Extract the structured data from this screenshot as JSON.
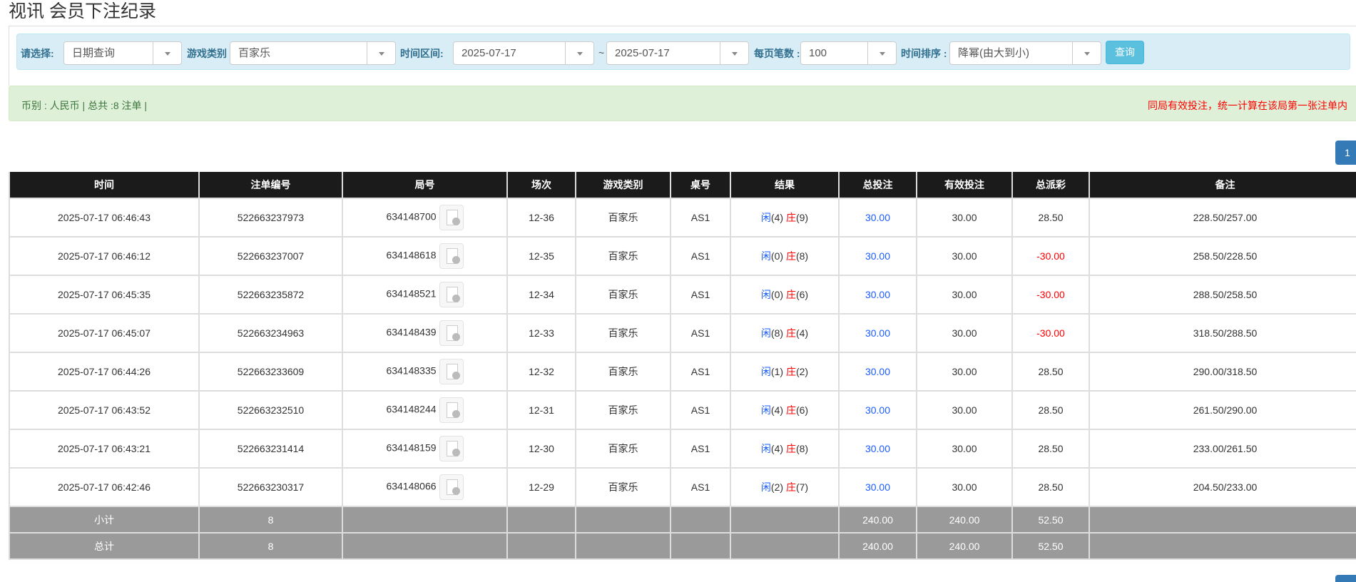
{
  "title": "视讯 会员下注纪录",
  "filters": {
    "select_label": "请选择:",
    "select_value": "日期查询",
    "game_label": "游戏类别",
    "game_value": "百家乐",
    "range_label": "时间区间:",
    "date_from": "2025-07-17",
    "tilde": "~",
    "date_to": "2025-07-17",
    "perpage_label": "每页笔数 :",
    "perpage_value": "100",
    "sort_label": "时间排序 :",
    "sort_value": "降幂(由大到小)",
    "query_button": "查询"
  },
  "summary": {
    "left": "币别 : 人民币 | 总共 :8 注单 |",
    "right": "同局有效投注，统一计算在该局第一张注单内"
  },
  "pagination": {
    "current": "1"
  },
  "colors": {
    "header_bg": "#1b1b1b",
    "info_bar": "#d9edf7",
    "success_bar": "#dff0d8",
    "button": "#5bc0de",
    "page": "#337ab7",
    "player": "#1a5cff",
    "banker": "#ff0000",
    "sum_row": "#9a9a9a"
  },
  "table": {
    "headers": [
      "时间",
      "注单编号",
      "局号",
      "场次",
      "游戏类别",
      "桌号",
      "结果",
      "总投注",
      "有效投注",
      "总派彩",
      "备注"
    ],
    "player_label": "闲",
    "banker_label": "庄",
    "rows": [
      {
        "time": "2025-07-17 06:46:43",
        "bet_id": "522663237973",
        "round": "634148700",
        "shoe": "12-36",
        "game": "百家乐",
        "table": "AS1",
        "player": "(4)",
        "banker": "(9)",
        "total_bet": "30.00",
        "valid_bet": "30.00",
        "payout": "28.50",
        "payout_negative": false,
        "note": "228.50/257.00"
      },
      {
        "time": "2025-07-17 06:46:12",
        "bet_id": "522663237007",
        "round": "634148618",
        "shoe": "12-35",
        "game": "百家乐",
        "table": "AS1",
        "player": "(0)",
        "banker": "(8)",
        "total_bet": "30.00",
        "valid_bet": "30.00",
        "payout": "-30.00",
        "payout_negative": true,
        "note": "258.50/228.50"
      },
      {
        "time": "2025-07-17 06:45:35",
        "bet_id": "522663235872",
        "round": "634148521",
        "shoe": "12-34",
        "game": "百家乐",
        "table": "AS1",
        "player": "(0)",
        "banker": "(6)",
        "total_bet": "30.00",
        "valid_bet": "30.00",
        "payout": "-30.00",
        "payout_negative": true,
        "note": "288.50/258.50"
      },
      {
        "time": "2025-07-17 06:45:07",
        "bet_id": "522663234963",
        "round": "634148439",
        "shoe": "12-33",
        "game": "百家乐",
        "table": "AS1",
        "player": "(8)",
        "banker": "(4)",
        "total_bet": "30.00",
        "valid_bet": "30.00",
        "payout": "-30.00",
        "payout_negative": true,
        "note": "318.50/288.50"
      },
      {
        "time": "2025-07-17 06:44:26",
        "bet_id": "522663233609",
        "round": "634148335",
        "shoe": "12-32",
        "game": "百家乐",
        "table": "AS1",
        "player": "(1)",
        "banker": "(2)",
        "total_bet": "30.00",
        "valid_bet": "30.00",
        "payout": "28.50",
        "payout_negative": false,
        "note": "290.00/318.50"
      },
      {
        "time": "2025-07-17 06:43:52",
        "bet_id": "522663232510",
        "round": "634148244",
        "shoe": "12-31",
        "game": "百家乐",
        "table": "AS1",
        "player": "(4)",
        "banker": "(6)",
        "total_bet": "30.00",
        "valid_bet": "30.00",
        "payout": "28.50",
        "payout_negative": false,
        "note": "261.50/290.00"
      },
      {
        "time": "2025-07-17 06:43:21",
        "bet_id": "522663231414",
        "round": "634148159",
        "shoe": "12-30",
        "game": "百家乐",
        "table": "AS1",
        "player": "(4)",
        "banker": "(8)",
        "total_bet": "30.00",
        "valid_bet": "30.00",
        "payout": "28.50",
        "payout_negative": false,
        "note": "233.00/261.50"
      },
      {
        "time": "2025-07-17 06:42:46",
        "bet_id": "522663230317",
        "round": "634148066",
        "shoe": "12-29",
        "game": "百家乐",
        "table": "AS1",
        "player": "(2)",
        "banker": "(7)",
        "total_bet": "30.00",
        "valid_bet": "30.00",
        "payout": "28.50",
        "payout_negative": false,
        "note": "204.50/233.00"
      }
    ],
    "subtotal": {
      "label": "小计",
      "count": "8",
      "total_bet": "240.00",
      "valid_bet": "240.00",
      "payout": "52.50"
    },
    "total": {
      "label": "总计",
      "count": "8",
      "total_bet": "240.00",
      "valid_bet": "240.00",
      "payout": "52.50"
    }
  }
}
